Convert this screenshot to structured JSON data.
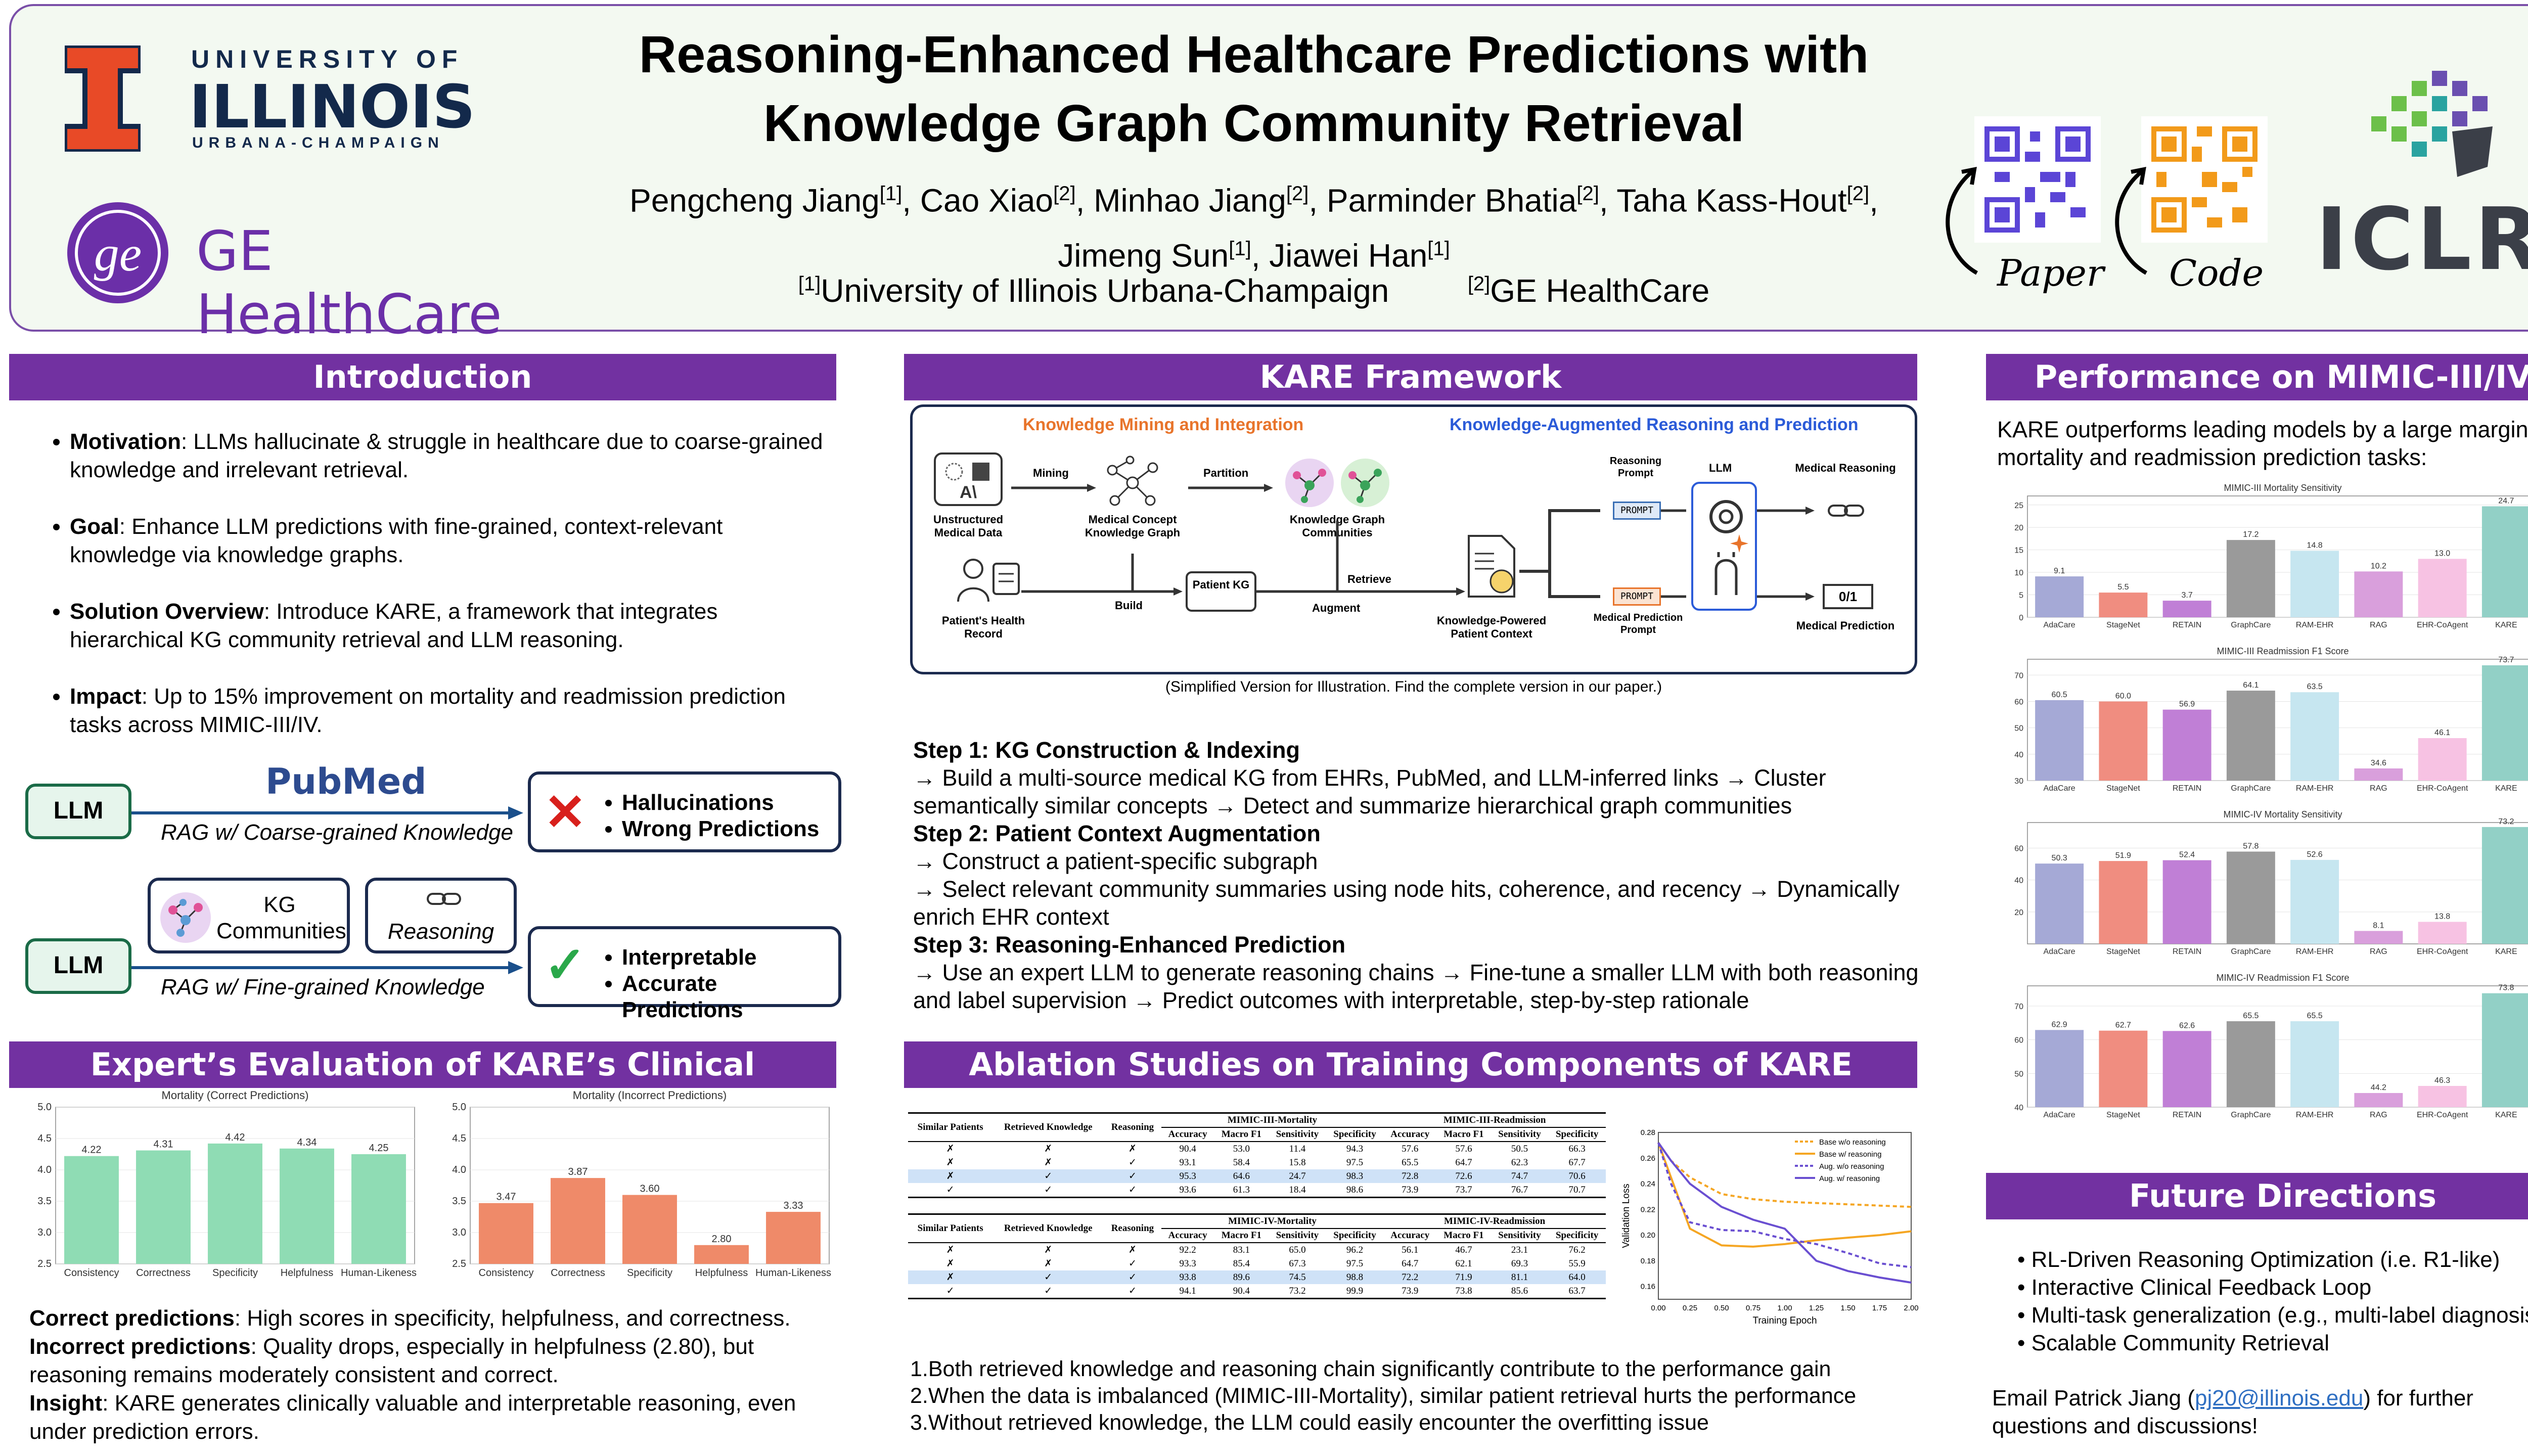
{
  "header": {
    "uiuc_line1": "UNIVERSITY OF",
    "uiuc_line2": "ILLINOIS",
    "uiuc_line3": "URBANA-CHAMPAIGN",
    "ge_name": "GE HealthCare",
    "title_line1": "Reasoning-Enhanced Healthcare Predictions with",
    "title_line2": "Knowledge Graph Community Retrieval",
    "authors_line1_html": "Pengcheng Jiang<sup>[1]</sup>, Cao Xiao<sup>[2]</sup>, Minhao Jiang<sup>[2]</sup>, Parminder Bhatia<sup>[2]</sup>, Taha Kass-Hout<sup>[2]</sup>,",
    "authors_line2_html": "Jimeng Sun<sup>[1]</sup>, Jiawei Han<sup>[1]</sup>",
    "affil1_html": "<sup>[1]</sup>University of Illinois Urbana-Champaign",
    "affil2_html": "<sup>[2]</sup>GE HealthCare",
    "paper_label": "Paper",
    "code_label": "Code",
    "iclr": "ICLR"
  },
  "intro": {
    "heading": "Introduction",
    "bullets": [
      {
        "bold": "Motivation",
        "text": ": LLMs hallucinate & struggle in healthcare due to coarse-grained knowledge and irrelevant retrieval."
      },
      {
        "bold": "Goal",
        "text": ": Enhance LLM predictions with fine-grained, context-relevant knowledge via knowledge graphs."
      },
      {
        "bold": "Solution Overview",
        "text": ": Introduce KARE, a framework that integrates hierarchical KG community retrieval and LLM reasoning."
      },
      {
        "bold": "Impact",
        "text": ": Up to 15% improvement on mortality and readmission prediction tasks across MIMIC-III/IV."
      }
    ],
    "llm": "LLM",
    "pubmed": "PubMed",
    "rag_coarse": "RAG w/ Coarse-grained Knowledge",
    "bad1": "Hallucinations",
    "bad2": "Wrong Predictions",
    "kg_comm": "KG Communities",
    "reasoning": "Reasoning",
    "rag_fine": "RAG w/ Fine-grained Knowledge",
    "good1": "Interpretable",
    "good2": "Accurate Predictions"
  },
  "expert": {
    "heading": "Expert’s Evaluation of KARE’s Clinical Reasoning",
    "notes": [
      {
        "bold": "Correct predictions",
        "text": ": High scores in specificity, helpfulness, and correctness."
      },
      {
        "bold": "Incorrect predictions",
        "text": ": Quality drops, especially in helpfulness (2.80), but reasoning remains moderately consistent and correct."
      },
      {
        "bold": "Insight",
        "text": ": KARE generates clinically valuable and interpretable reasoning, even under prediction errors."
      }
    ]
  },
  "framework": {
    "heading": "KARE Framework",
    "left_title": "Knowledge Mining and Integration",
    "right_title": "Knowledge-Augmented Reasoning and Prediction",
    "n_unstructured": "Unstructured Medical Data",
    "n_mining": "Mining",
    "n_concept": "Medical Concept Knowledge Graph",
    "n_partition": "Partition",
    "n_communities": "Knowledge Graph Communities",
    "n_retrieve": "Retrieve",
    "n_phr": "Patient's Health Record",
    "n_build": "Build",
    "n_patientkg": "Patient KG",
    "n_augment": "Augment",
    "n_context": "Knowledge-Powered Patient Context",
    "n_rprompt": "Reasoning Prompt",
    "n_pprompt": "Medical Prediction Prompt",
    "n_prompt_tag": "PROMPT",
    "n_llm": "LLM",
    "n_medreason": "Medical Reasoning",
    "n_medpred": "Medical Prediction",
    "n_01": "0/1",
    "caption": "(Simplified Version for Illustration. Find the complete version in our paper.)",
    "steps": [
      {
        "title": "Step 1: KG Construction & Indexing",
        "lines": [
          "→ Build a multi-source medical KG from EHRs, PubMed, and LLM-inferred links → Cluster semantically similar concepts → Detect and summarize hierarchical graph communities"
        ]
      },
      {
        "title": "Step 2: Patient Context Augmentation",
        "lines": [
          "→ Construct a patient-specific subgraph",
          "→ Select relevant community summaries using node hits, coherence, and recency → Dynamically enrich EHR context"
        ]
      },
      {
        "title": "Step 3: Reasoning-Enhanced Prediction",
        "lines": [
          "→ Use an expert LLM to generate reasoning chains → Fine-tune a smaller LLM with both reasoning and label supervision → Predict outcomes with interpretable, step-by-step rationale"
        ]
      }
    ]
  },
  "ablation": {
    "heading": "Ablation Studies on Training Components of KARE",
    "h_similar": "Similar Patients",
    "h_retrieved": "Retrieved Knowledge",
    "h_reasoning": "Reasoning",
    "metrics": [
      "Accuracy",
      "Macro F1",
      "Sensitivity",
      "Specificity",
      "Accuracy",
      "Macro F1",
      "Sensitivity",
      "Specificity"
    ],
    "t1_left": "MIMIC-III-Mortality",
    "t1_right": "MIMIC-III-Readmission",
    "t2_left": "MIMIC-IV-Mortality",
    "t2_right": "MIMIC-IV-Readmission",
    "t1_rows": [
      {
        "flags": [
          "✗",
          "✗",
          "✗"
        ],
        "vals": [
          "90.4",
          "53.0",
          "11.4",
          "94.3",
          "57.6",
          "57.6",
          "50.5",
          "66.3"
        ]
      },
      {
        "flags": [
          "✗",
          "✗",
          "✓"
        ],
        "vals": [
          "93.1",
          "58.4",
          "15.8",
          "97.5",
          "65.5",
          "64.7",
          "62.3",
          "67.7"
        ]
      },
      {
        "flags": [
          "✗",
          "✓",
          "✓"
        ],
        "vals": [
          "95.3",
          "64.6",
          "24.7",
          "98.3",
          "72.8",
          "72.6",
          "74.7",
          "70.6"
        ]
      },
      {
        "flags": [
          "✓",
          "✓",
          "✓"
        ],
        "vals": [
          "93.6",
          "61.3",
          "18.4",
          "98.6",
          "73.9",
          "73.7",
          "76.7",
          "70.7"
        ]
      }
    ],
    "t2_rows": [
      {
        "flags": [
          "✗",
          "✗",
          "✗"
        ],
        "vals": [
          "92.2",
          "83.1",
          "65.0",
          "96.2",
          "56.1",
          "46.7",
          "23.1",
          "76.2"
        ]
      },
      {
        "flags": [
          "✗",
          "✗",
          "✓"
        ],
        "vals": [
          "93.3",
          "85.4",
          "67.3",
          "97.5",
          "64.7",
          "62.1",
          "69.3",
          "55.9"
        ]
      },
      {
        "flags": [
          "✗",
          "✓",
          "✓"
        ],
        "vals": [
          "93.8",
          "89.6",
          "74.5",
          "98.8",
          "72.2",
          "71.9",
          "81.1",
          "64.0"
        ]
      },
      {
        "flags": [
          "✓",
          "✓",
          "✓"
        ],
        "vals": [
          "94.1",
          "90.4",
          "73.2",
          "99.9",
          "73.9",
          "73.8",
          "85.6",
          "63.7"
        ]
      }
    ],
    "findings": [
      "1.Both retrieved knowledge and reasoning chain significantly contribute to the performance gain",
      "2.When the data is imbalanced (MIMIC-III-Mortality), similar patient retrieval hurts the performance",
      "3.Without retrieved knowledge, the LLM could easily encounter the overfitting issue"
    ]
  },
  "performance": {
    "heading": "Performance on MIMIC-III/IV",
    "intro": "KARE outperforms leading models by a large margin on mortality and readmission prediction tasks:"
  },
  "future": {
    "heading": "Future Directions",
    "bullets": [
      "RL-Driven Reasoning Optimization (i.e. R1-like)",
      "Interactive Clinical Feedback Loop",
      "Multi-task generalization (e.g., multi-label diagnosis)",
      "Scalable Community Retrieval"
    ],
    "email_pre": "Email Patrick Jiang (",
    "email": "pj20@illinois.edu",
    "email_post": ") for further questions and discussions!"
  },
  "colors": {
    "purple": "#7231a1",
    "green": "#8fdcb4",
    "salmon": "#ef8a69"
  },
  "chart_data": [
    {
      "type": "bar",
      "title": "Mortality (Correct Predictions)",
      "categories": [
        "Consistency",
        "Correctness",
        "Specificity",
        "Helpfulness",
        "Human-Likeness"
      ],
      "values": [
        4.22,
        4.31,
        4.42,
        4.34,
        4.25
      ],
      "ylim": [
        2.5,
        5.0
      ],
      "yticks": [
        2.5,
        3.0,
        3.5,
        4.0,
        4.5,
        5.0
      ],
      "color": "#8fdcb4"
    },
    {
      "type": "bar",
      "title": "Mortality (Incorrect Predictions)",
      "categories": [
        "Consistency",
        "Correctness",
        "Specificity",
        "Helpfulness",
        "Human-Likeness"
      ],
      "values": [
        3.47,
        3.87,
        3.6,
        2.8,
        3.33
      ],
      "ylim": [
        2.5,
        5.0
      ],
      "yticks": [
        2.5,
        3.0,
        3.5,
        4.0,
        4.5,
        5.0
      ],
      "color": "#ef8a69"
    },
    {
      "type": "bar",
      "title": "MIMIC-III Mortality Sensitivity",
      "categories": [
        "AdaCare",
        "StageNet",
        "RETAIN",
        "GraphCare",
        "RAM-EHR",
        "RAG",
        "EHR-CoAgent",
        "KARE"
      ],
      "values": [
        9.1,
        5.5,
        3.7,
        17.2,
        14.8,
        10.2,
        13.0,
        24.7
      ],
      "ylim": [
        0,
        27
      ],
      "yticks": [
        0,
        5,
        10,
        15,
        20,
        25
      ]
    },
    {
      "type": "bar",
      "title": "MIMIC-III Readmission F1 Score",
      "categories": [
        "AdaCare",
        "StageNet",
        "RETAIN",
        "GraphCare",
        "RAM-EHR",
        "RAG",
        "EHR-CoAgent",
        "KARE"
      ],
      "values": [
        60.5,
        60.0,
        56.9,
        64.1,
        63.5,
        34.6,
        46.1,
        73.7
      ],
      "ylim": [
        30,
        76
      ],
      "yticks": [
        30,
        40,
        50,
        60,
        70
      ]
    },
    {
      "type": "bar",
      "title": "MIMIC-IV Mortality Sensitivity",
      "categories": [
        "AdaCare",
        "StageNet",
        "RETAIN",
        "GraphCare",
        "RAM-EHR",
        "RAG",
        "EHR-CoAgent",
        "KARE"
      ],
      "values": [
        50.3,
        51.9,
        52.4,
        57.8,
        52.6,
        8.1,
        13.8,
        73.2
      ],
      "ylim": [
        0,
        76
      ],
      "yticks": [
        20,
        40,
        60
      ]
    },
    {
      "type": "bar",
      "title": "MIMIC-IV Readmission F1 Score",
      "categories": [
        "AdaCare",
        "StageNet",
        "RETAIN",
        "GraphCare",
        "RAM-EHR",
        "RAG",
        "EHR-CoAgent",
        "KARE"
      ],
      "values": [
        62.9,
        62.7,
        62.6,
        65.5,
        65.5,
        44.2,
        46.3,
        73.8
      ],
      "ylim": [
        40,
        76
      ],
      "yticks": [
        40,
        50,
        60,
        70
      ]
    },
    {
      "type": "line",
      "xlabel": "Training Epoch",
      "ylabel": "Validation Loss",
      "ylim": [
        0.15,
        0.28
      ],
      "xlim": [
        0,
        2.0
      ],
      "xticks": [
        0,
        0.25,
        0.5,
        0.75,
        1.0,
        1.25,
        1.5,
        1.75,
        2.0
      ],
      "yticks": [
        0.16,
        0.18,
        0.2,
        0.22,
        0.24,
        0.26,
        0.28
      ],
      "series": [
        {
          "name": "Base w/o reasoning",
          "color": "#f5a623",
          "dash": true,
          "x": [
            0,
            0.1,
            0.25,
            0.5,
            0.75,
            1.0,
            1.25,
            1.5,
            1.75,
            2.0
          ],
          "y": [
            0.272,
            0.258,
            0.245,
            0.232,
            0.228,
            0.226,
            0.225,
            0.224,
            0.223,
            0.222
          ]
        },
        {
          "name": "Base w/ reasoning",
          "color": "#f5a623",
          "dash": false,
          "x": [
            0,
            0.1,
            0.25,
            0.5,
            0.75,
            1.0,
            1.25,
            1.5,
            1.75,
            2.0
          ],
          "y": [
            0.272,
            0.245,
            0.205,
            0.192,
            0.191,
            0.193,
            0.196,
            0.198,
            0.2,
            0.203
          ]
        },
        {
          "name": "Aug. w/o reasoning",
          "color": "#6a4fd1",
          "dash": true,
          "x": [
            0,
            0.1,
            0.25,
            0.5,
            0.75,
            1.0,
            1.25,
            1.5,
            1.75,
            2.0
          ],
          "y": [
            0.272,
            0.24,
            0.21,
            0.204,
            0.203,
            0.197,
            0.193,
            0.186,
            0.178,
            0.175
          ]
        },
        {
          "name": "Aug. w/ reasoning",
          "color": "#6a4fd1",
          "dash": false,
          "x": [
            0,
            0.1,
            0.25,
            0.5,
            0.75,
            1.0,
            1.25,
            1.5,
            1.75,
            2.0
          ],
          "y": [
            0.272,
            0.258,
            0.24,
            0.222,
            0.212,
            0.205,
            0.18,
            0.172,
            0.167,
            0.163
          ]
        }
      ]
    }
  ]
}
